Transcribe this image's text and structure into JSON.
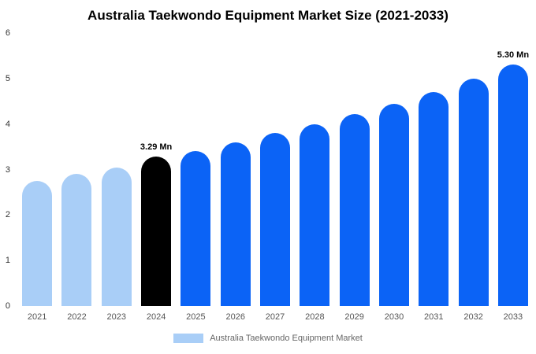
{
  "title": "Australia Taekwondo Equipment Market Size (2021-2033)",
  "legend": {
    "label": "Australia Taekwondo Equipment Market",
    "swatch_color": "#a9cef7"
  },
  "colors": {
    "historical": "#a9cef7",
    "base_year": "#000000",
    "forecast": "#0b63f6"
  },
  "chart_data": {
    "type": "bar",
    "title": "Australia Taekwondo Equipment Market Size (2021-2033)",
    "categories": [
      "2021",
      "2022",
      "2023",
      "2024",
      "2025",
      "2026",
      "2027",
      "2028",
      "2029",
      "2030",
      "2031",
      "2032",
      "2033"
    ],
    "values": [
      2.75,
      2.9,
      3.05,
      3.29,
      3.4,
      3.6,
      3.8,
      4.0,
      4.22,
      4.45,
      4.7,
      5.0,
      5.3
    ],
    "unit": "Mn",
    "bar_colors": [
      "#a9cef7",
      "#a9cef7",
      "#a9cef7",
      "#000000",
      "#0b63f6",
      "#0b63f6",
      "#0b63f6",
      "#0b63f6",
      "#0b63f6",
      "#0b63f6",
      "#0b63f6",
      "#0b63f6",
      "#0b63f6"
    ],
    "annotations": [
      {
        "index": 3,
        "text": "3.29 Mn"
      },
      {
        "index": 12,
        "text": "5.30 Mn"
      }
    ],
    "xlabel": "",
    "ylabel": "",
    "ylim": [
      0,
      6
    ],
    "yticks": [
      0,
      1,
      2,
      3,
      4,
      5,
      6
    ],
    "grid": false,
    "legend_position": "bottom"
  }
}
